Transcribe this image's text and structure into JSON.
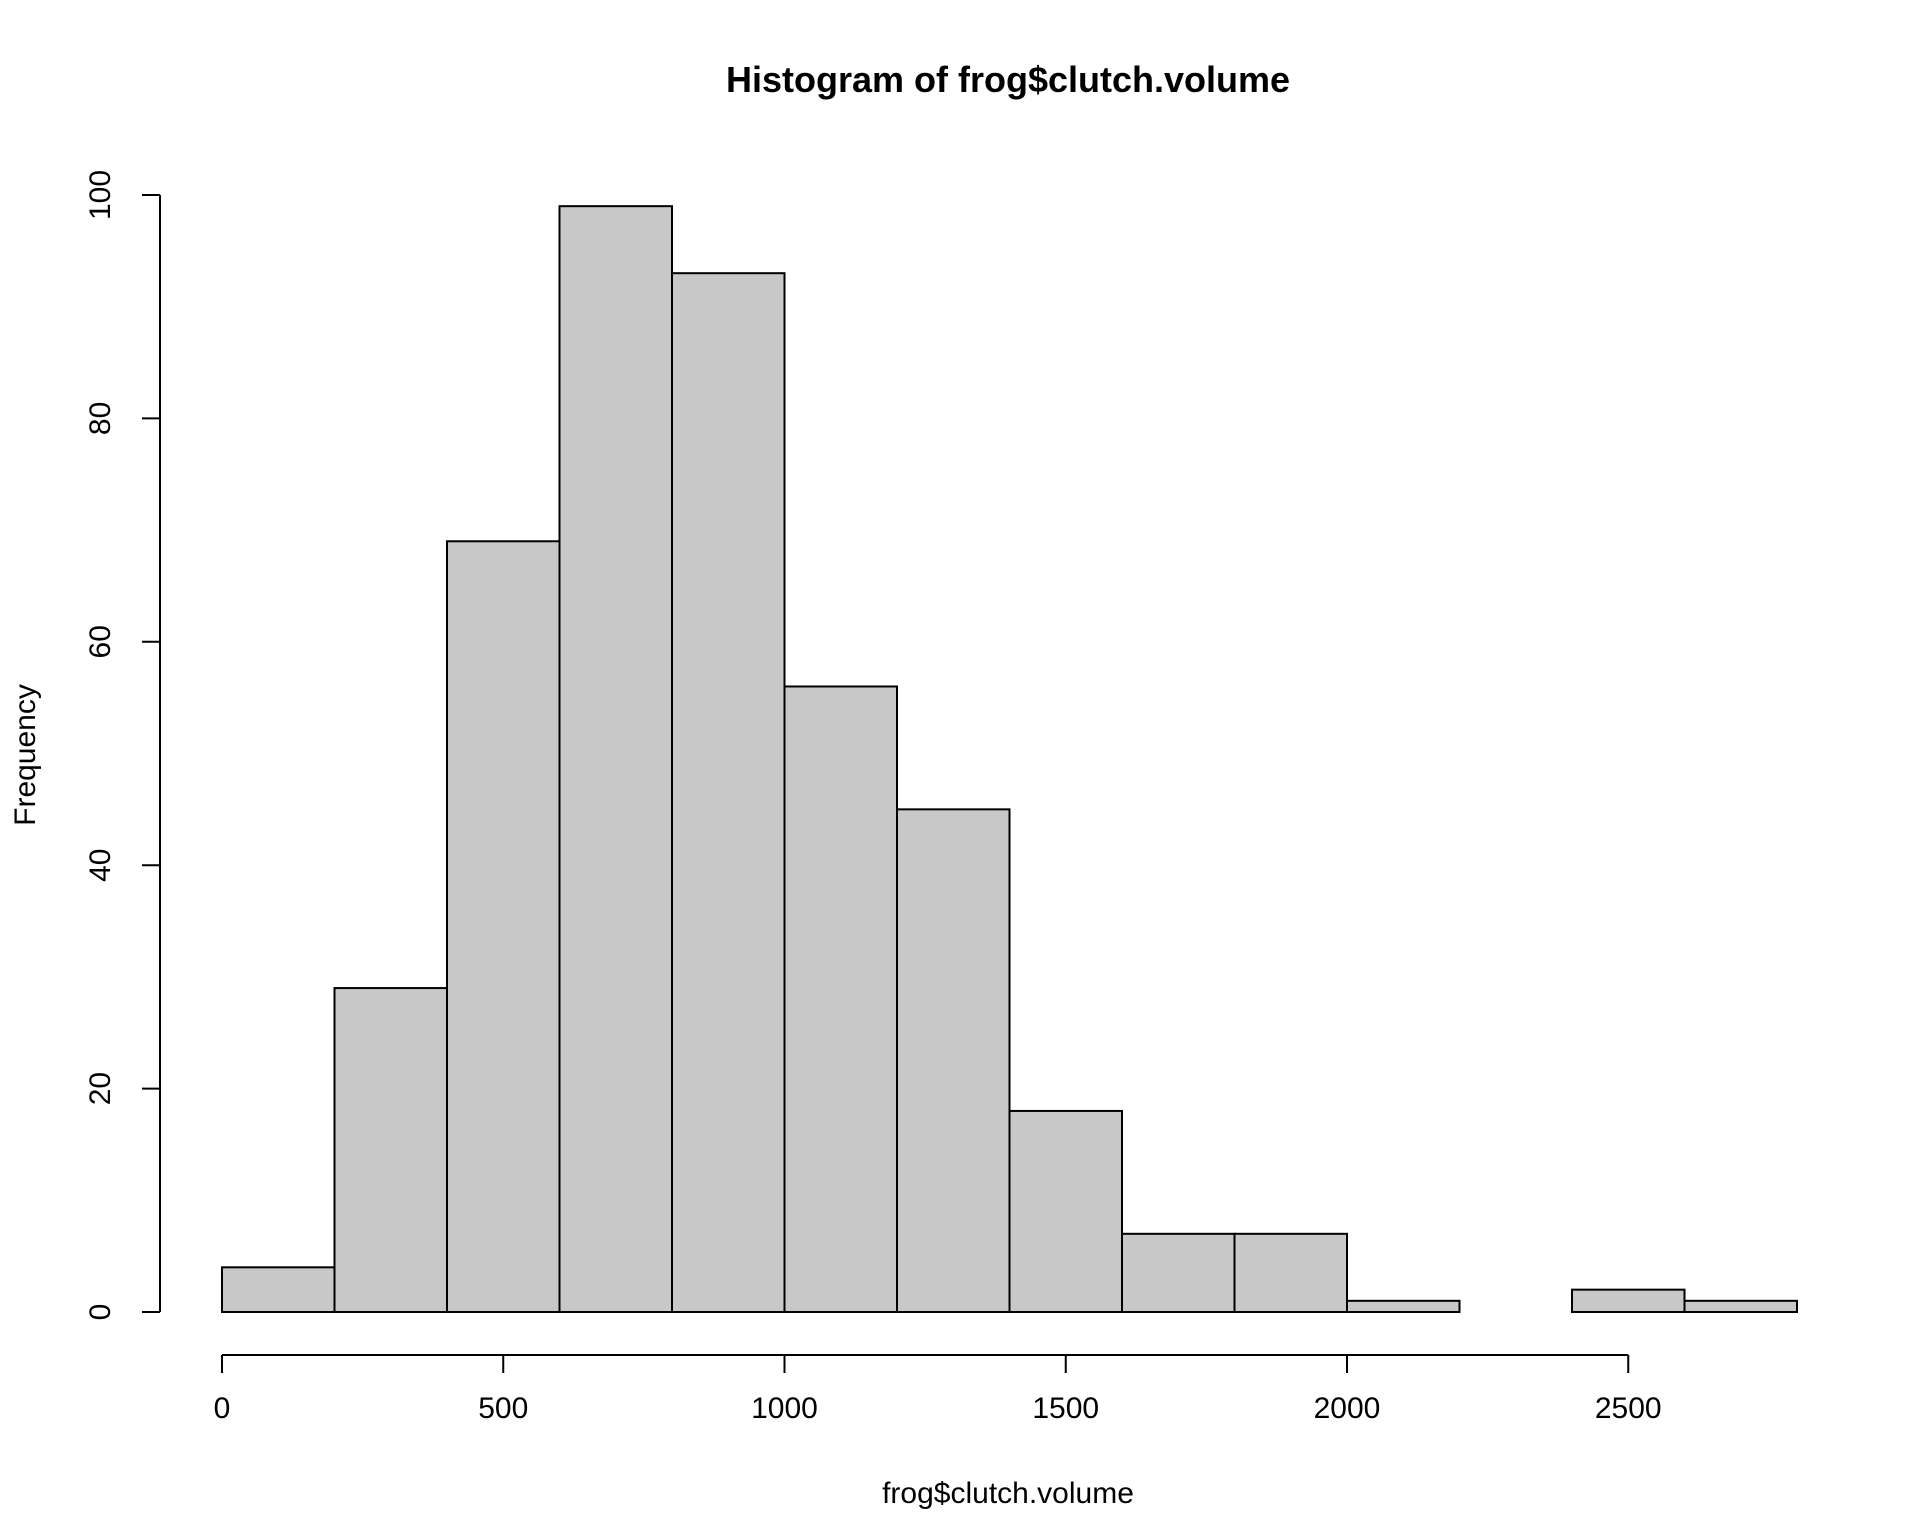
{
  "chart_data": {
    "type": "bar",
    "subtype": "histogram",
    "title": "Histogram of frog$clutch.volume",
    "xlabel": "frog$clutch.volume",
    "ylabel": "Frequency",
    "bins": [
      {
        "from": 0,
        "to": 200,
        "count": 4
      },
      {
        "from": 200,
        "to": 400,
        "count": 29
      },
      {
        "from": 400,
        "to": 600,
        "count": 69
      },
      {
        "from": 600,
        "to": 800,
        "count": 99
      },
      {
        "from": 800,
        "to": 1000,
        "count": 93
      },
      {
        "from": 1000,
        "to": 1200,
        "count": 56
      },
      {
        "from": 1200,
        "to": 1400,
        "count": 45
      },
      {
        "from": 1400,
        "to": 1600,
        "count": 18
      },
      {
        "from": 1600,
        "to": 1800,
        "count": 7
      },
      {
        "from": 1800,
        "to": 2000,
        "count": 7
      },
      {
        "from": 2000,
        "to": 2200,
        "count": 1
      },
      {
        "from": 2200,
        "to": 2400,
        "count": 0
      },
      {
        "from": 2400,
        "to": 2600,
        "count": 2
      },
      {
        "from": 2600,
        "to": 2800,
        "count": 1
      }
    ],
    "xlim": [
      0,
      2800
    ],
    "ylim": [
      0,
      100
    ],
    "xticks": [
      0,
      500,
      1000,
      1500,
      2000,
      2500
    ],
    "yticks": [
      0,
      20,
      40,
      60,
      80,
      100
    ],
    "bar_color": "#c8c8c8",
    "edge_color": "#000000",
    "grid": false
  }
}
